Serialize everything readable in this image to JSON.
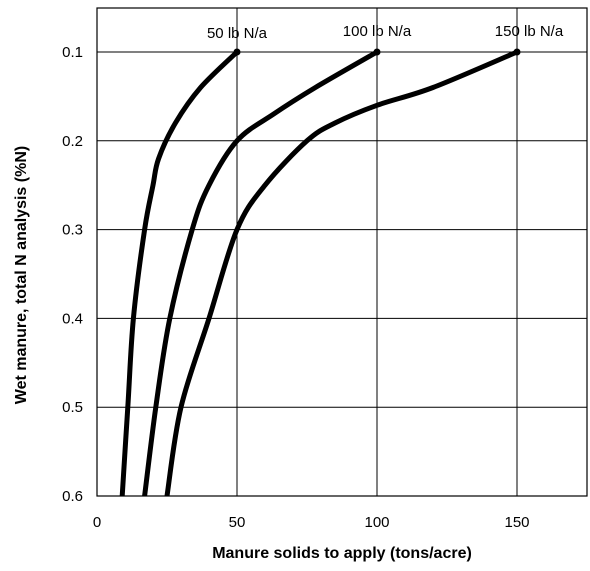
{
  "chart_data": {
    "type": "line",
    "title": "",
    "xlabel": "Manure solids to apply (tons/acre)",
    "ylabel": "Wet manure, total N analysis (%N)",
    "xlim": [
      0,
      175
    ],
    "ylim": [
      0.1,
      0.6
    ],
    "y_inverted": true,
    "grid": true,
    "x_ticks": [
      0,
      50,
      100,
      150
    ],
    "x_tick_labels": [
      "0",
      "50",
      "100",
      "150"
    ],
    "y_ticks": [
      0.1,
      0.2,
      0.3,
      0.4,
      0.5,
      0.6
    ],
    "y_tick_labels": [
      "0.1",
      "0.2",
      "0.3",
      "0.4",
      "0.5",
      "0.6"
    ],
    "series": [
      {
        "name": "50 lb N/a",
        "points": [
          [
            50,
            0.1
          ],
          [
            37,
            0.14
          ],
          [
            28,
            0.18
          ],
          [
            22,
            0.22
          ],
          [
            20,
            0.25
          ],
          [
            17,
            0.3
          ],
          [
            13,
            0.4
          ],
          [
            11,
            0.5
          ],
          [
            9,
            0.6
          ]
        ]
      },
      {
        "name": "100 lb N/a",
        "points": [
          [
            100,
            0.1
          ],
          [
            78,
            0.14
          ],
          [
            63,
            0.17
          ],
          [
            50,
            0.2
          ],
          [
            40,
            0.25
          ],
          [
            34,
            0.3
          ],
          [
            26,
            0.4
          ],
          [
            21,
            0.5
          ],
          [
            17,
            0.6
          ]
        ]
      },
      {
        "name": "150 lb N/a",
        "points": [
          [
            150,
            0.1
          ],
          [
            120,
            0.14
          ],
          [
            100,
            0.16
          ],
          [
            85,
            0.18
          ],
          [
            75,
            0.2
          ],
          [
            60,
            0.25
          ],
          [
            50,
            0.3
          ],
          [
            40,
            0.4
          ],
          [
            30,
            0.5
          ],
          [
            25,
            0.6
          ]
        ]
      }
    ]
  }
}
